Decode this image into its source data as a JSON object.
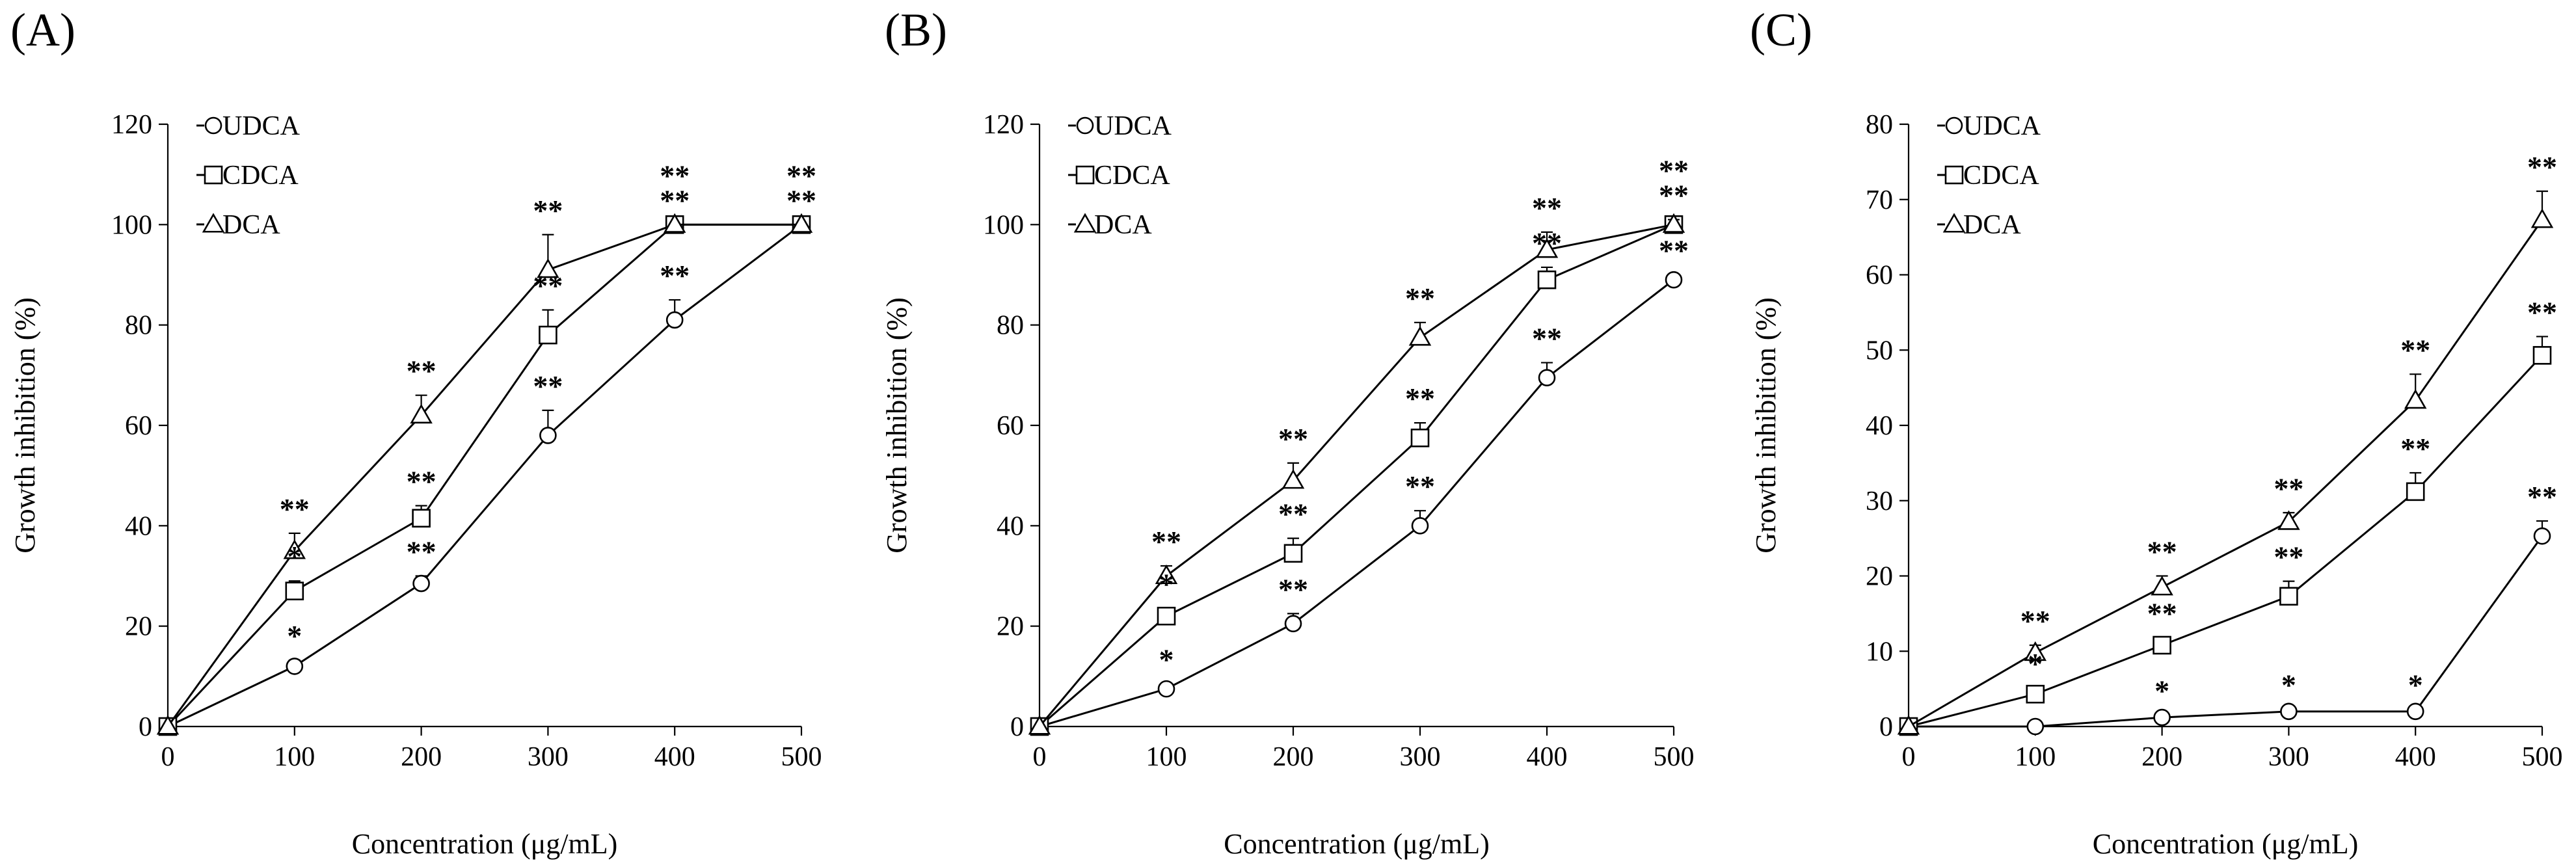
{
  "chart_data": [
    {
      "type": "line",
      "panel_label": "(A)",
      "xlabel": "Concentration (μg/mL)",
      "ylabel": "Growth inhibition (%)",
      "x": [
        0,
        100,
        200,
        300,
        400,
        500
      ],
      "x_ticks": [
        0,
        100,
        200,
        300,
        400,
        500
      ],
      "xlim": [
        0,
        500
      ],
      "ylim": [
        0,
        120
      ],
      "y_ticks": [
        0,
        20,
        40,
        60,
        80,
        100,
        120
      ],
      "legend_position": "top-left",
      "series": [
        {
          "name": "UDCA",
          "marker": "circle",
          "values": [
            0,
            12,
            28.5,
            58,
            81,
            100
          ],
          "errors": [
            0,
            1.2,
            1.5,
            5,
            4,
            0
          ],
          "significance": [
            "",
            "*",
            "**",
            "**",
            "**",
            ""
          ]
        },
        {
          "name": "CDCA",
          "marker": "square",
          "values": [
            0,
            27,
            41.5,
            78,
            100,
            100
          ],
          "errors": [
            0,
            2,
            2.5,
            5,
            0,
            0
          ],
          "significance": [
            "",
            "*",
            "**",
            "**",
            "**",
            "**"
          ]
        },
        {
          "name": "DCA",
          "marker": "triangle",
          "values": [
            0,
            35,
            62,
            91,
            100,
            100
          ],
          "errors": [
            0,
            3.5,
            4,
            7,
            0,
            0
          ],
          "significance": [
            "",
            "**",
            "**",
            "**",
            "**",
            "**"
          ]
        }
      ]
    },
    {
      "type": "line",
      "panel_label": "(B)",
      "xlabel": "Concentration (μg/mL)",
      "ylabel": "Growth inhibition (%)",
      "x": [
        0,
        100,
        200,
        300,
        400,
        500
      ],
      "x_ticks": [
        0,
        100,
        200,
        300,
        400,
        500
      ],
      "xlim": [
        0,
        500
      ],
      "ylim": [
        0,
        120
      ],
      "y_ticks": [
        0,
        20,
        40,
        60,
        80,
        100,
        120
      ],
      "legend_position": "top-left",
      "series": [
        {
          "name": "UDCA",
          "marker": "circle",
          "values": [
            0,
            7.5,
            20.5,
            40,
            69.5,
            89
          ],
          "errors": [
            0,
            1,
            2,
            3,
            3,
            1
          ],
          "significance": [
            "",
            "*",
            "**",
            "**",
            "**",
            "**"
          ]
        },
        {
          "name": "CDCA",
          "marker": "square",
          "values": [
            0,
            22,
            34.5,
            57.5,
            89,
            100
          ],
          "errors": [
            0,
            1.5,
            3,
            3,
            2.5,
            1
          ],
          "significance": [
            "",
            "*",
            "**",
            "**",
            "**",
            "**"
          ]
        },
        {
          "name": "DCA",
          "marker": "triangle",
          "values": [
            0,
            30,
            49,
            77.5,
            95,
            100
          ],
          "errors": [
            0,
            2,
            3.5,
            3,
            3.5,
            1
          ],
          "significance": [
            "",
            "**",
            "**",
            "**",
            "**",
            "**"
          ]
        }
      ]
    },
    {
      "type": "line",
      "panel_label": "(C)",
      "xlabel": "Concentration (μg/mL)",
      "ylabel": "Growth inhibition (%)",
      "x": [
        0,
        100,
        200,
        300,
        400,
        500
      ],
      "x_ticks": [
        0,
        100,
        200,
        300,
        400,
        500
      ],
      "xlim": [
        0,
        500
      ],
      "ylim": [
        0,
        80
      ],
      "y_ticks": [
        0,
        10,
        20,
        30,
        40,
        50,
        60,
        70,
        80
      ],
      "legend_position": "top-left",
      "series": [
        {
          "name": "UDCA",
          "marker": "circle",
          "values": [
            0,
            0,
            1.2,
            2,
            2,
            25.3
          ],
          "errors": [
            0,
            0,
            0.3,
            0.3,
            0.3,
            2
          ],
          "significance": [
            "",
            "",
            "*",
            "*",
            "*",
            "**"
          ]
        },
        {
          "name": "CDCA",
          "marker": "square",
          "values": [
            0,
            4.3,
            10.8,
            17.3,
            31.2,
            49.3
          ],
          "errors": [
            0,
            0.8,
            1,
            2,
            2.5,
            2.5
          ],
          "significance": [
            "",
            "*",
            "**",
            "**",
            "**",
            "**"
          ]
        },
        {
          "name": "DCA",
          "marker": "triangle",
          "values": [
            0,
            9.8,
            18.5,
            27.2,
            43.3,
            67.3
          ],
          "errors": [
            0,
            1,
            1.5,
            1.2,
            3.5,
            3.8
          ],
          "significance": [
            "",
            "**",
            "**",
            "**",
            "**",
            "**"
          ]
        }
      ]
    }
  ]
}
